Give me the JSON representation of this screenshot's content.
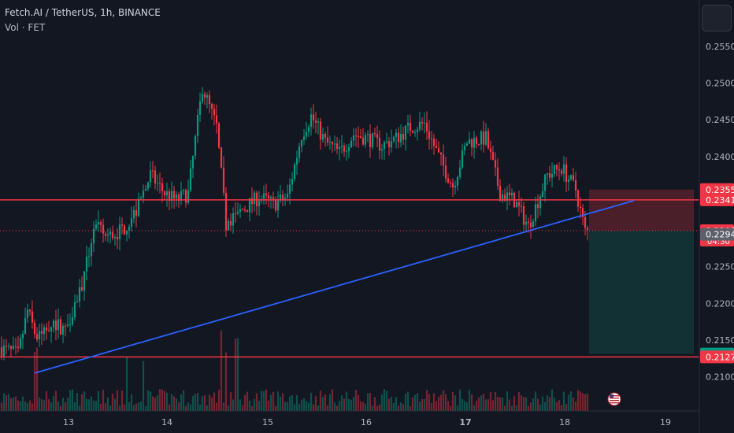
{
  "header": {
    "symbol_line": "Fetch.AI / TetherUS, 1h, BINANCE",
    "volume_line": "Vol · FET"
  },
  "chart_data": {
    "type": "candlestick",
    "title": "Fetch.AI / TetherUS, 1h, BINANCE",
    "ylim": [
      0.2075,
      0.2595
    ],
    "y_ticks": [
      "0.2100",
      "0.2150",
      "0.2200",
      "0.2250",
      "0.2300",
      "0.2350",
      "0.2400",
      "0.2450",
      "0.2500",
      "0.2550"
    ],
    "x_ticks": [
      "13",
      "14",
      "15",
      "16",
      "17",
      "18",
      "19"
    ],
    "x_ticks_bold": [
      "17"
    ],
    "grid": false,
    "price_labels": [
      {
        "text": "0.2355",
        "value": 0.2355,
        "color": "#f23645"
      },
      {
        "text": "0.2341",
        "value": 0.2341,
        "color": "#f23645"
      },
      {
        "text": "0.2299",
        "value": 0.2299,
        "color": "#f23645",
        "sub": "04:30"
      },
      {
        "text": "0.2294",
        "value": 0.2294,
        "color": "#5d606b"
      },
      {
        "text": "0.2131",
        "value": 0.2131,
        "color": "#089981"
      },
      {
        "text": "0.2127",
        "value": 0.2127,
        "color": "#f23645"
      }
    ],
    "horizontal_lines": [
      {
        "value": 0.2341,
        "color": "#f23645",
        "style": "solid"
      },
      {
        "value": 0.2127,
        "color": "#f23645",
        "style": "solid"
      },
      {
        "value": 0.2299,
        "color": "#f23645",
        "style": "dotted"
      }
    ],
    "trendline": {
      "from": {
        "x": "Dec 12 18:00",
        "y": 0.2105
      },
      "to": {
        "x": "Dec 18 15:00",
        "y": 0.234
      },
      "color": "#2962ff"
    },
    "position": {
      "entry": 0.2299,
      "stop": 0.2355,
      "target": 0.2131,
      "from": "Dec 18 07:00",
      "to": "Dec 19 04:00"
    },
    "flag": "US"
  }
}
